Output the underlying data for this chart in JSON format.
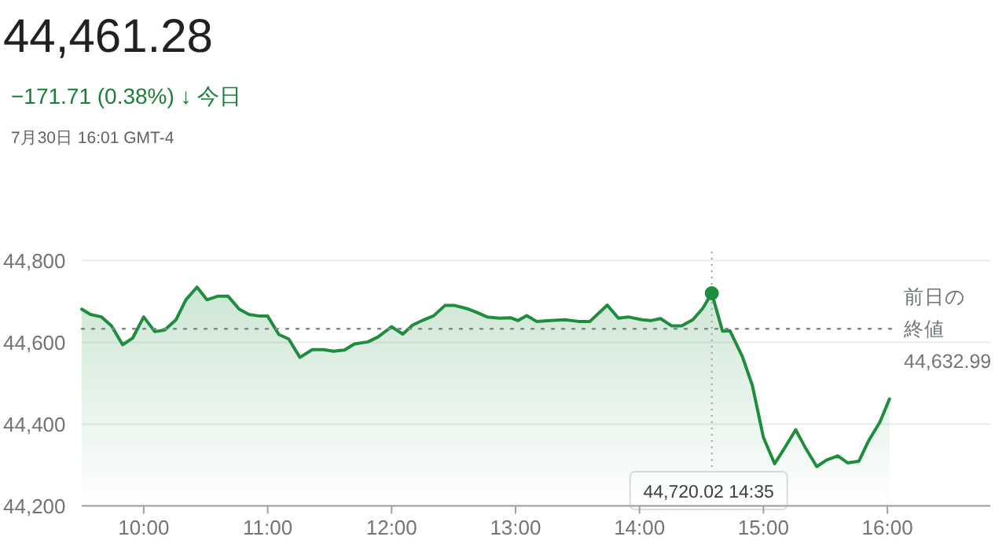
{
  "chart_data": {
    "type": "area",
    "title": "44,461.28",
    "subtitle": "−171.71 (0.38%) ↓ 今日",
    "annotations": [
      "7月30日 16:01 GMT-4",
      "44,720.02 14:35"
    ],
    "x": [
      9.5,
      9.57,
      9.66,
      9.74,
      9.83,
      9.91,
      10.0,
      10.09,
      10.17,
      10.26,
      10.34,
      10.43,
      10.51,
      10.6,
      10.68,
      10.77,
      10.85,
      10.94,
      11.0,
      11.09,
      11.17,
      11.26,
      11.36,
      11.45,
      11.53,
      11.62,
      11.7,
      11.81,
      11.89,
      12.0,
      12.09,
      12.17,
      12.26,
      12.34,
      12.43,
      12.51,
      12.6,
      12.68,
      12.77,
      12.87,
      12.96,
      13.02,
      13.09,
      13.17,
      13.28,
      13.4,
      13.51,
      13.6,
      13.74,
      13.83,
      13.91,
      14.02,
      14.09,
      14.17,
      14.26,
      14.34,
      14.43,
      14.51,
      14.5833,
      14.67,
      14.73,
      14.83,
      14.91,
      15.0,
      15.09,
      15.17,
      15.26,
      15.34,
      15.43,
      15.51,
      15.6,
      15.68,
      15.77,
      15.85,
      15.94,
      16.017
    ],
    "series": [
      {
        "color": "#1e8e3e",
        "values": [
          44681,
          44668,
          44662,
          44640,
          44594,
          44610,
          44662,
          44626,
          44630,
          44655,
          44704,
          44735,
          44704,
          44713,
          44713,
          44681,
          44668,
          44664,
          44664,
          44619,
          44608,
          44563,
          44582,
          44582,
          44578,
          44581,
          44596,
          44601,
          44613,
          44638,
          44620,
          44642,
          44655,
          44665,
          44690,
          44690,
          44683,
          44674,
          44662,
          44659,
          44660,
          44653,
          44665,
          44651,
          44653,
          44655,
          44651,
          44651,
          44691,
          44659,
          44662,
          44655,
          44653,
          44658,
          44640,
          44640,
          44655,
          44683,
          44720.02,
          44627,
          44628,
          44565,
          44495,
          44367,
          44303,
          44341,
          44386,
          44341,
          44296,
          44312,
          44322,
          44305,
          44309,
          44360,
          44405,
          44461.28
        ]
      }
    ],
    "xlim": [
      9.5,
      16.83
    ],
    "ylim": [
      44200,
      44800
    ],
    "xticks": [
      {
        "value": 10,
        "label": "10:00"
      },
      {
        "value": 11,
        "label": "11:00"
      },
      {
        "value": 12,
        "label": "12:00"
      },
      {
        "value": 13,
        "label": "13:00"
      },
      {
        "value": 14,
        "label": "14:00"
      },
      {
        "value": 15,
        "label": "15:00"
      },
      {
        "value": 16,
        "label": "16:00"
      }
    ],
    "yticks": [
      {
        "value": 44200,
        "label": "44,200"
      },
      {
        "value": 44400,
        "label": "44,400"
      },
      {
        "value": 44600,
        "label": "44,600"
      },
      {
        "value": 44800,
        "label": "44,800"
      }
    ],
    "ref_lines": [
      {
        "axis": "y",
        "value": 44632.99,
        "label": "前日の終値\n44,632.99",
        "line_style": "dotted"
      },
      {
        "axis": "x",
        "value": 14.5833,
        "line_style": "dotted"
      }
    ],
    "grid": "y"
  }
}
